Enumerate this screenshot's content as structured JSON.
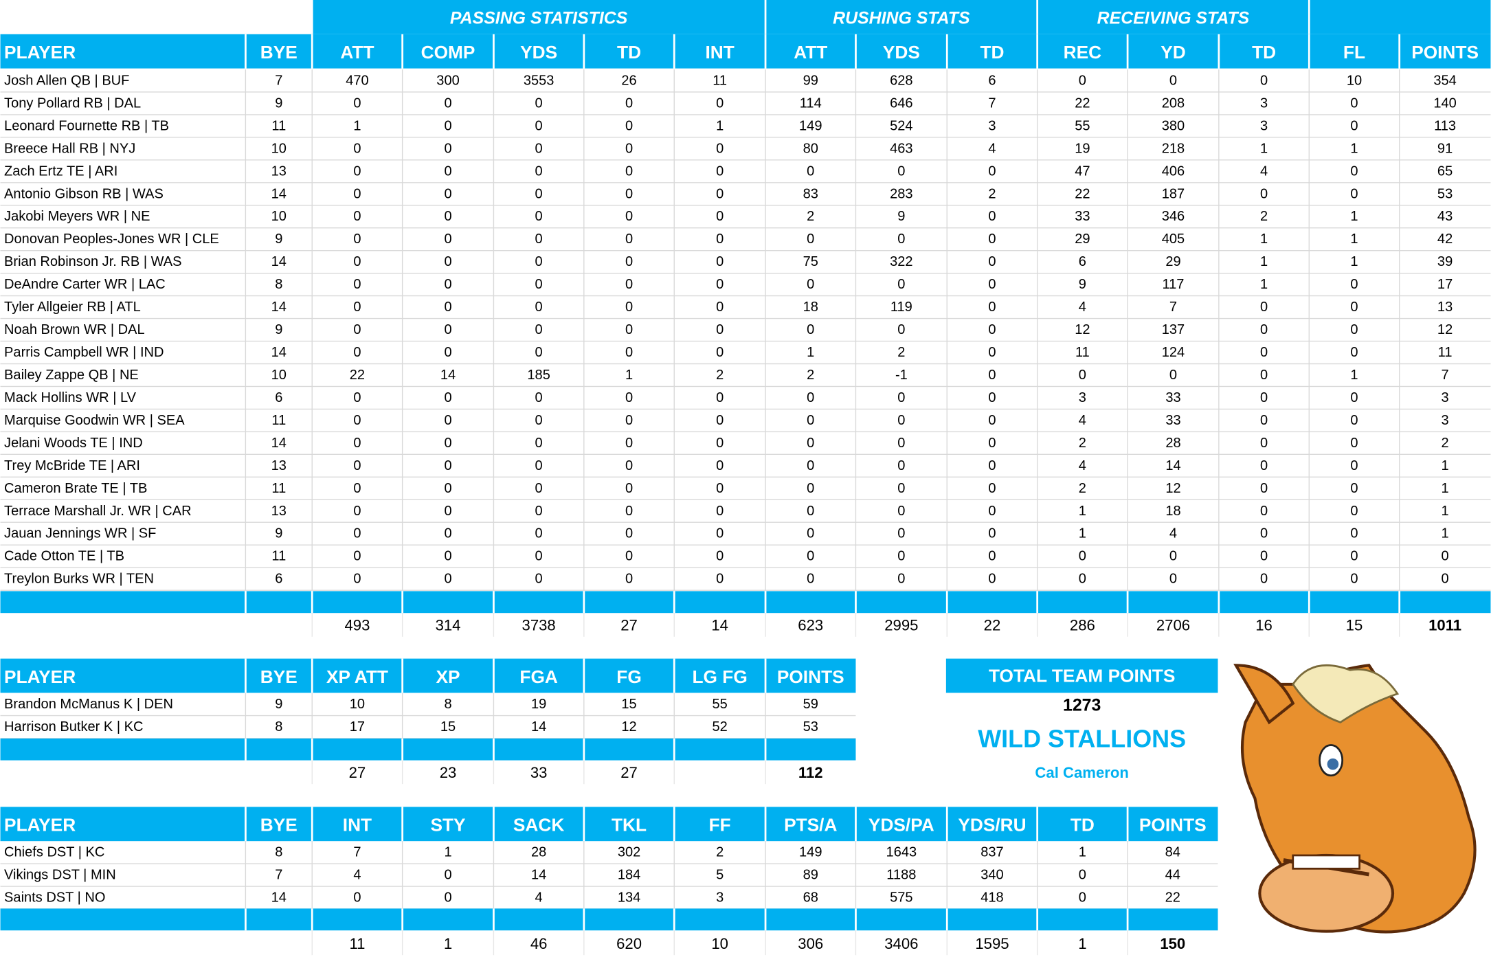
{
  "main": {
    "groups": [
      "PASSING STATISTICS",
      "RUSHING STATS",
      "RECEIVING STATS"
    ],
    "columns": [
      "PLAYER",
      "BYE",
      "ATT",
      "COMP",
      "YDS",
      "TD",
      "INT",
      "ATT",
      "YDS",
      "TD",
      "REC",
      "YD",
      "TD",
      "FL",
      "POINTS"
    ],
    "rows": [
      [
        "Josh Allen QB | BUF",
        7,
        470,
        300,
        3553,
        26,
        11,
        99,
        628,
        6,
        0,
        0,
        0,
        10,
        354
      ],
      [
        "Tony Pollard RB | DAL",
        9,
        0,
        0,
        0,
        0,
        0,
        114,
        646,
        7,
        22,
        208,
        3,
        0,
        140
      ],
      [
        "Leonard Fournette RB | TB",
        11,
        1,
        0,
        0,
        0,
        1,
        149,
        524,
        3,
        55,
        380,
        3,
        0,
        113
      ],
      [
        "Breece Hall RB | NYJ",
        10,
        0,
        0,
        0,
        0,
        0,
        80,
        463,
        4,
        19,
        218,
        1,
        1,
        91
      ],
      [
        "Zach Ertz TE | ARI",
        13,
        0,
        0,
        0,
        0,
        0,
        0,
        0,
        0,
        47,
        406,
        4,
        0,
        65
      ],
      [
        "Antonio Gibson RB | WAS",
        14,
        0,
        0,
        0,
        0,
        0,
        83,
        283,
        2,
        22,
        187,
        0,
        0,
        53
      ],
      [
        "Jakobi Meyers WR | NE",
        10,
        0,
        0,
        0,
        0,
        0,
        2,
        9,
        0,
        33,
        346,
        2,
        1,
        43
      ],
      [
        "Donovan Peoples-Jones WR | CLE",
        9,
        0,
        0,
        0,
        0,
        0,
        0,
        0,
        0,
        29,
        405,
        1,
        1,
        42
      ],
      [
        "Brian Robinson Jr. RB | WAS",
        14,
        0,
        0,
        0,
        0,
        0,
        75,
        322,
        0,
        6,
        29,
        1,
        1,
        39
      ],
      [
        "DeAndre Carter WR | LAC",
        8,
        0,
        0,
        0,
        0,
        0,
        0,
        0,
        0,
        9,
        117,
        1,
        0,
        17
      ],
      [
        "Tyler Allgeier RB | ATL",
        14,
        0,
        0,
        0,
        0,
        0,
        18,
        119,
        0,
        4,
        7,
        0,
        0,
        13
      ],
      [
        "Noah Brown WR | DAL",
        9,
        0,
        0,
        0,
        0,
        0,
        0,
        0,
        0,
        12,
        137,
        0,
        0,
        12
      ],
      [
        "Parris Campbell WR | IND",
        14,
        0,
        0,
        0,
        0,
        0,
        1,
        2,
        0,
        11,
        124,
        0,
        0,
        11
      ],
      [
        "Bailey Zappe QB | NE",
        10,
        22,
        14,
        185,
        1,
        2,
        2,
        -1,
        0,
        0,
        0,
        0,
        1,
        7
      ],
      [
        "Mack Hollins WR | LV",
        6,
        0,
        0,
        0,
        0,
        0,
        0,
        0,
        0,
        3,
        33,
        0,
        0,
        3
      ],
      [
        "Marquise Goodwin WR | SEA",
        11,
        0,
        0,
        0,
        0,
        0,
        0,
        0,
        0,
        4,
        33,
        0,
        0,
        3
      ],
      [
        "Jelani Woods TE | IND",
        14,
        0,
        0,
        0,
        0,
        0,
        0,
        0,
        0,
        2,
        28,
        0,
        0,
        2
      ],
      [
        "Trey McBride TE | ARI",
        13,
        0,
        0,
        0,
        0,
        0,
        0,
        0,
        0,
        4,
        14,
        0,
        0,
        1
      ],
      [
        "Cameron Brate TE | TB",
        11,
        0,
        0,
        0,
        0,
        0,
        0,
        0,
        0,
        2,
        12,
        0,
        0,
        1
      ],
      [
        "Terrace Marshall Jr. WR | CAR",
        13,
        0,
        0,
        0,
        0,
        0,
        0,
        0,
        0,
        1,
        18,
        0,
        0,
        1
      ],
      [
        "Jauan Jennings WR | SF",
        9,
        0,
        0,
        0,
        0,
        0,
        0,
        0,
        0,
        1,
        4,
        0,
        0,
        1
      ],
      [
        "Cade Otton TE | TB",
        11,
        0,
        0,
        0,
        0,
        0,
        0,
        0,
        0,
        0,
        0,
        0,
        0,
        0
      ],
      [
        "Treylon Burks WR | TEN",
        6,
        0,
        0,
        0,
        0,
        0,
        0,
        0,
        0,
        0,
        0,
        0,
        0,
        0
      ]
    ],
    "totals": [
      493,
      314,
      3738,
      27,
      14,
      623,
      2995,
      22,
      286,
      2706,
      16,
      15,
      1011
    ]
  },
  "kickers": {
    "columns": [
      "PLAYER",
      "BYE",
      "XP ATT",
      "XP",
      "FGA",
      "FG",
      "LG FG",
      "POINTS"
    ],
    "rows": [
      [
        "Brandon McManus K | DEN",
        9,
        10,
        8,
        19,
        15,
        55,
        59
      ],
      [
        "Harrison Butker K | KC",
        8,
        17,
        15,
        14,
        12,
        52,
        53
      ]
    ],
    "totals": [
      27,
      23,
      33,
      27,
      null,
      112
    ]
  },
  "defense": {
    "columns": [
      "PLAYER",
      "BYE",
      "INT",
      "STY",
      "SACK",
      "TKL",
      "FF",
      "PTS/A",
      "YDS/PA",
      "YDS/RU",
      "TD",
      "POINTS"
    ],
    "rows": [
      [
        "Chiefs DST | KC",
        8,
        7,
        1,
        28,
        302,
        2,
        149,
        1643,
        837,
        1,
        84
      ],
      [
        "Vikings DST | MIN",
        7,
        4,
        0,
        14,
        184,
        5,
        89,
        1188,
        340,
        0,
        44
      ],
      [
        "Saints DST | NO",
        14,
        0,
        0,
        4,
        134,
        3,
        68,
        575,
        418,
        0,
        22
      ]
    ],
    "totals": [
      11,
      1,
      46,
      620,
      10,
      306,
      3406,
      1595,
      1,
      150
    ]
  },
  "team": {
    "title": "TOTAL TEAM POINTS",
    "points": 1273,
    "name": "WILD STALLIONS",
    "owner": "Cal Cameron"
  }
}
